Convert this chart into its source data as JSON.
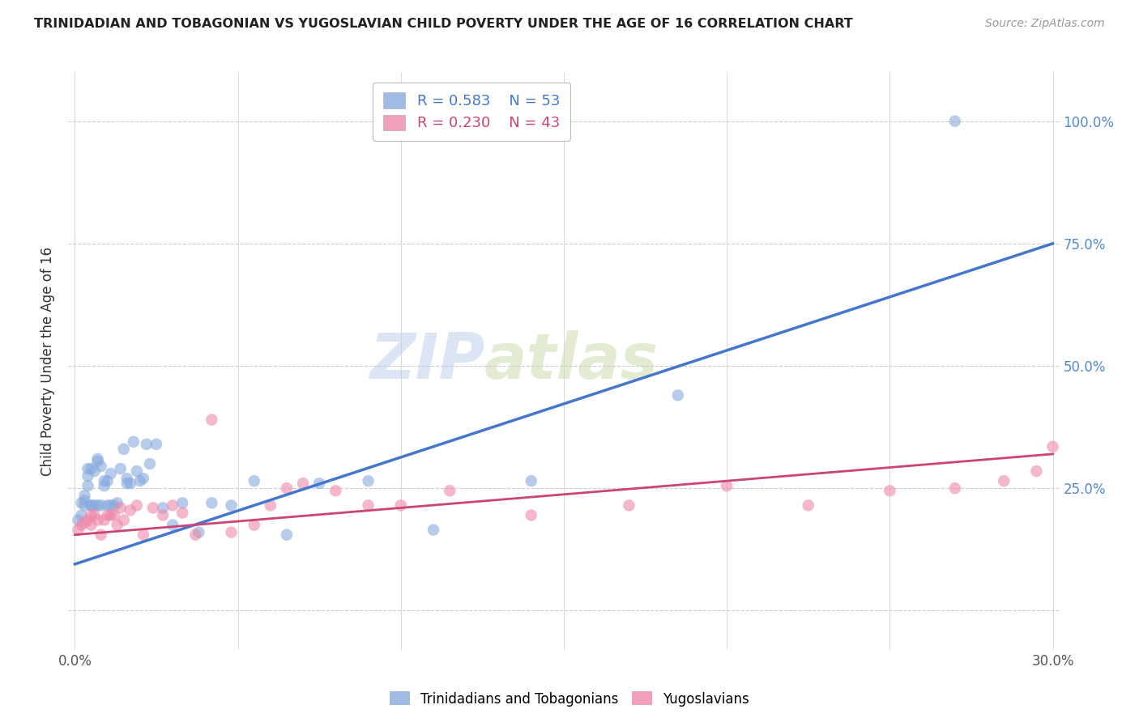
{
  "title": "TRINIDADIAN AND TOBAGONIAN VS YUGOSLAVIAN CHILD POVERTY UNDER THE AGE OF 16 CORRELATION CHART",
  "source": "Source: ZipAtlas.com",
  "ylabel": "Child Poverty Under the Age of 16",
  "xlabel": "",
  "xlim": [
    0.0,
    0.3
  ],
  "ylim": [
    -0.05,
    1.1
  ],
  "xticks": [
    0.0,
    0.05,
    0.1,
    0.15,
    0.2,
    0.25,
    0.3
  ],
  "xtick_labels": [
    "0.0%",
    "",
    "",
    "",
    "",
    "",
    "30.0%"
  ],
  "ytick_positions": [
    0.0,
    0.25,
    0.5,
    0.75,
    1.0
  ],
  "ytick_labels": [
    "",
    "25.0%",
    "50.0%",
    "75.0%",
    "100.0%"
  ],
  "grid_color": "#cccccc",
  "background_color": "#ffffff",
  "watermark_zip": "ZIP",
  "watermark_atlas": "atlas",
  "blue_R": 0.583,
  "blue_N": 53,
  "pink_R": 0.23,
  "pink_N": 43,
  "blue_color": "#88aadd",
  "pink_color": "#ee88aa",
  "blue_line_color": "#4477cc",
  "pink_line_color": "#cc4477",
  "blue_label": "Trinidadians and Tobagonians",
  "pink_label": "Yugoslavians",
  "blue_scatter_x": [
    0.001,
    0.002,
    0.002,
    0.003,
    0.003,
    0.003,
    0.004,
    0.004,
    0.004,
    0.005,
    0.005,
    0.005,
    0.006,
    0.006,
    0.007,
    0.007,
    0.007,
    0.008,
    0.008,
    0.009,
    0.009,
    0.01,
    0.01,
    0.011,
    0.011,
    0.012,
    0.013,
    0.014,
    0.015,
    0.016,
    0.016,
    0.017,
    0.018,
    0.019,
    0.02,
    0.021,
    0.022,
    0.023,
    0.025,
    0.027,
    0.03,
    0.033,
    0.038,
    0.042,
    0.048,
    0.055,
    0.065,
    0.075,
    0.09,
    0.11,
    0.14,
    0.185,
    0.27
  ],
  "blue_scatter_y": [
    0.185,
    0.195,
    0.22,
    0.225,
    0.215,
    0.235,
    0.29,
    0.275,
    0.255,
    0.29,
    0.215,
    0.215,
    0.285,
    0.215,
    0.31,
    0.305,
    0.215,
    0.295,
    0.215,
    0.265,
    0.255,
    0.265,
    0.215,
    0.28,
    0.215,
    0.215,
    0.22,
    0.29,
    0.33,
    0.27,
    0.26,
    0.26,
    0.345,
    0.285,
    0.265,
    0.27,
    0.34,
    0.3,
    0.34,
    0.21,
    0.175,
    0.22,
    0.16,
    0.22,
    0.215,
    0.265,
    0.155,
    0.26,
    0.265,
    0.165,
    0.265,
    0.44,
    1.0
  ],
  "pink_scatter_x": [
    0.001,
    0.002,
    0.003,
    0.004,
    0.005,
    0.005,
    0.006,
    0.007,
    0.008,
    0.009,
    0.01,
    0.011,
    0.012,
    0.013,
    0.014,
    0.015,
    0.017,
    0.019,
    0.021,
    0.024,
    0.027,
    0.03,
    0.033,
    0.037,
    0.042,
    0.048,
    0.055,
    0.06,
    0.065,
    0.07,
    0.08,
    0.09,
    0.1,
    0.115,
    0.14,
    0.17,
    0.2,
    0.225,
    0.25,
    0.27,
    0.285,
    0.295,
    0.3
  ],
  "pink_scatter_y": [
    0.165,
    0.175,
    0.18,
    0.185,
    0.175,
    0.195,
    0.195,
    0.185,
    0.155,
    0.185,
    0.195,
    0.195,
    0.195,
    0.175,
    0.21,
    0.185,
    0.205,
    0.215,
    0.155,
    0.21,
    0.195,
    0.215,
    0.2,
    0.155,
    0.39,
    0.16,
    0.175,
    0.215,
    0.25,
    0.26,
    0.245,
    0.215,
    0.215,
    0.245,
    0.195,
    0.215,
    0.255,
    0.215,
    0.245,
    0.25,
    0.265,
    0.285,
    0.335
  ],
  "blue_trendline_x": [
    0.0,
    0.3
  ],
  "blue_trendline_y": [
    0.095,
    0.75
  ],
  "pink_trendline_x": [
    0.0,
    0.3
  ],
  "pink_trendline_y": [
    0.155,
    0.32
  ],
  "legend_R_blue": "R = 0.583",
  "legend_N_blue": "N = 53",
  "legend_R_pink": "R = 0.230",
  "legend_N_pink": "N = 43"
}
